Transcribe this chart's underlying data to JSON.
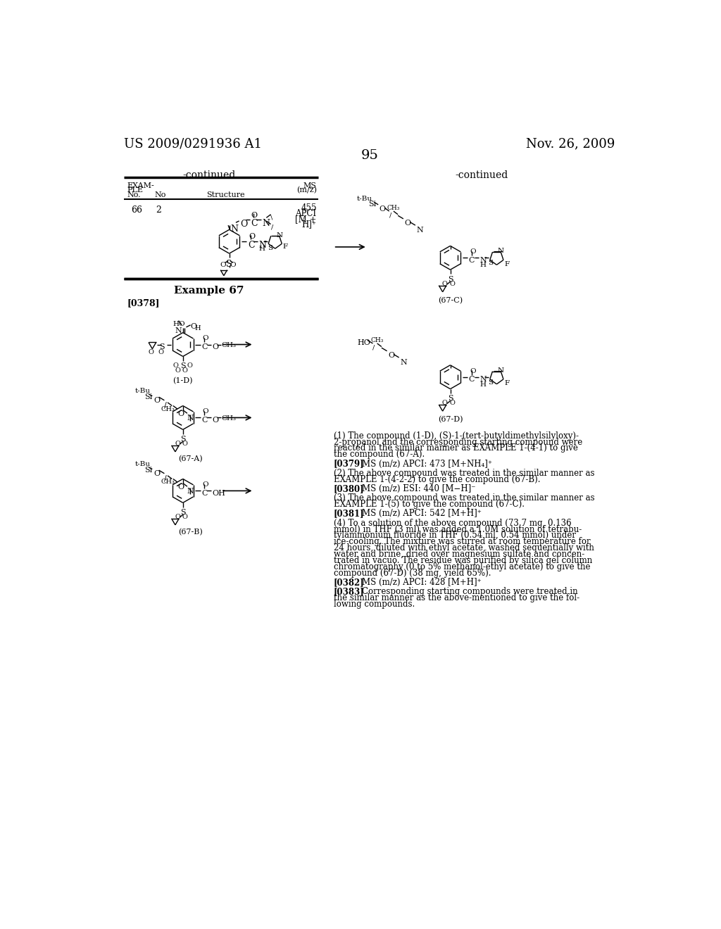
{
  "background_color": "#ffffff",
  "header_left": "US 2009/0291936 A1",
  "header_right": "Nov. 26, 2009",
  "page_number": "95"
}
